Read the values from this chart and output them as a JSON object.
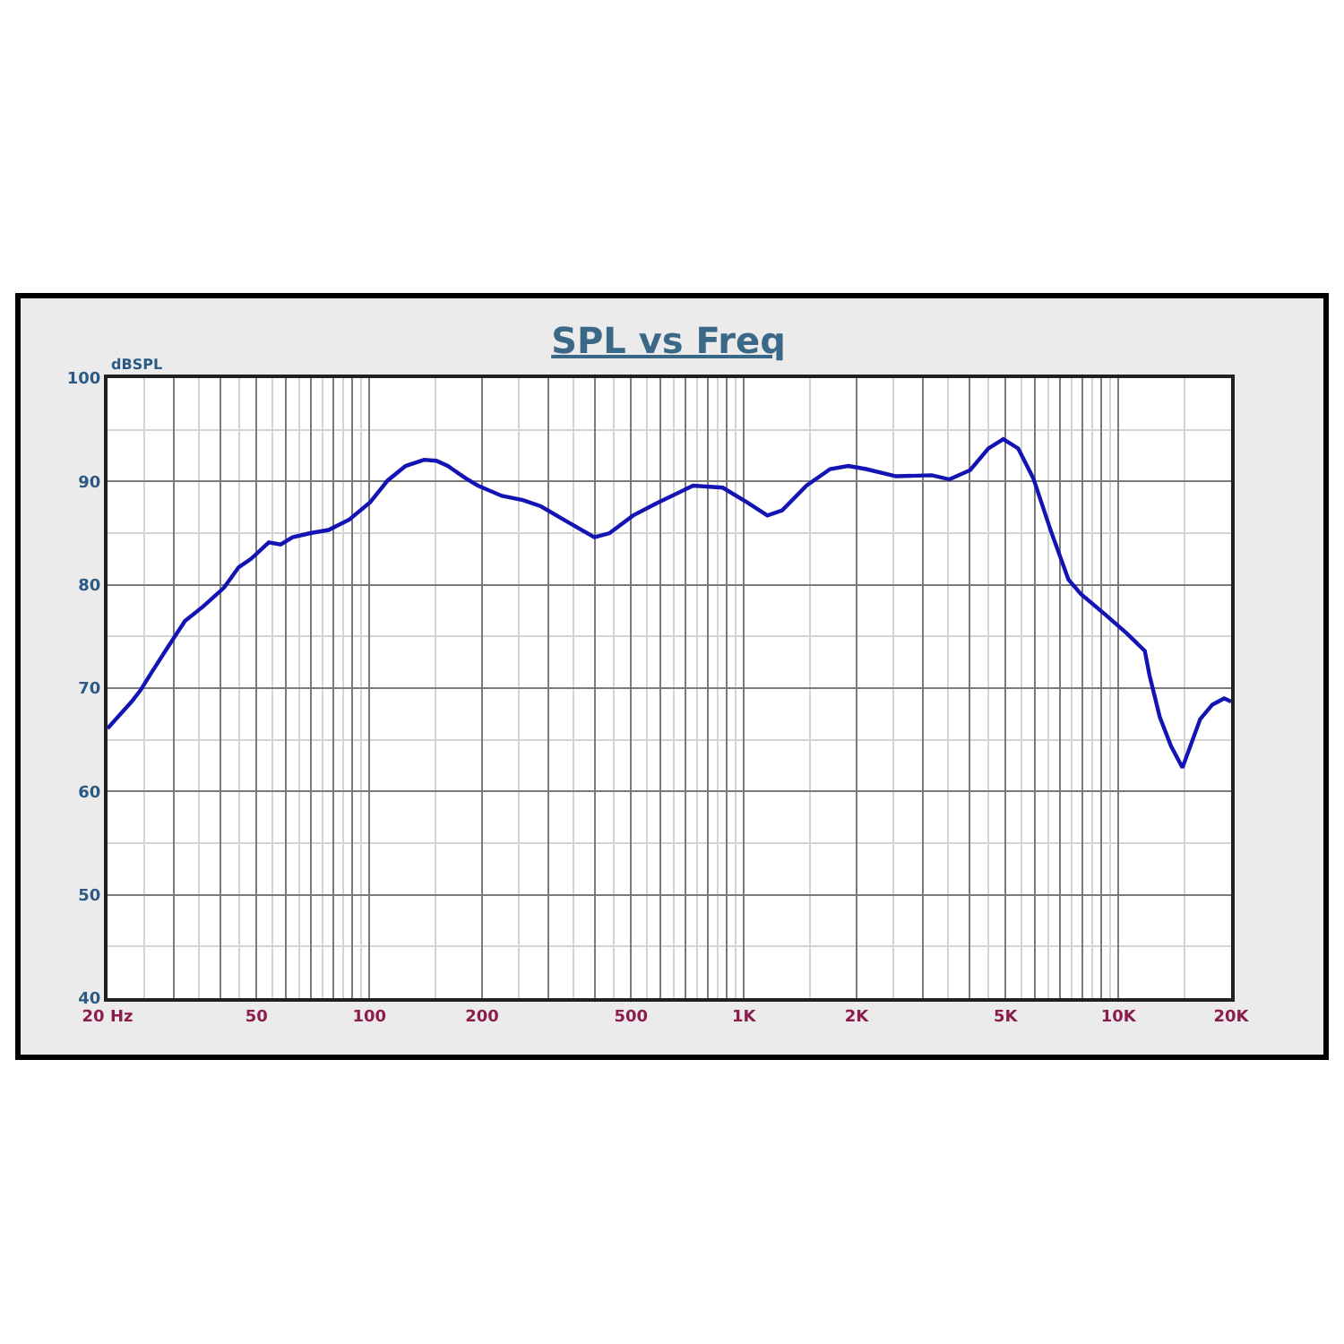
{
  "chart_data": {
    "type": "line",
    "title": "SPL vs Freq",
    "ylabel": "dBSPL",
    "x": [
      20,
      23.2,
      24.5,
      26.3,
      28.9,
      32.2,
      36,
      40.9,
      42.4,
      44.8,
      48.3,
      53.9,
      58,
      62.4,
      69.6,
      77.8,
      88.4,
      100.6,
      112,
      125,
      140,
      151,
      162,
      181,
      195,
      226,
      257,
      287,
      338,
      399,
      438,
      506,
      586,
      732,
      878,
      1018,
      1156,
      1266,
      1470,
      1700,
      1900,
      2120,
      2550,
      3175,
      3540,
      4020,
      4500,
      4930,
      5400,
      5930,
      6620,
      7360,
      7940,
      9240,
      10530,
      11770,
      12100,
      12900,
      13820,
      14830,
      16540,
      17820,
      19160,
      20000
    ],
    "series": [
      {
        "color": "#1414b4",
        "values": [
          66.1,
          68.7,
          69.8,
          71.6,
          73.9,
          76.5,
          77.9,
          79.7,
          80.5,
          81.7,
          82.5,
          84.1,
          83.9,
          84.6,
          85.0,
          85.3,
          86.3,
          88.0,
          90.1,
          91.5,
          92.1,
          92.0,
          91.5,
          90.3,
          89.6,
          88.6,
          88.2,
          87.6,
          86.1,
          84.6,
          85.0,
          86.7,
          87.9,
          89.6,
          89.4,
          88.0,
          86.7,
          87.2,
          89.6,
          91.2,
          91.5,
          91.2,
          90.5,
          90.6,
          90.2,
          91.1,
          93.2,
          94.1,
          93.2,
          90.3,
          85.1,
          80.5,
          79.1,
          77.1,
          75.3,
          73.6,
          71.3,
          67.2,
          64.4,
          62.3,
          67.0,
          68.4,
          69.0,
          68.7
        ]
      }
    ],
    "log": "x",
    "xlim": [
      20,
      20000
    ],
    "ylim": [
      40,
      100
    ],
    "xticks": [
      {
        "value": 20,
        "label": "20 Hz"
      },
      {
        "value": 30,
        "label": null
      },
      {
        "value": 40,
        "label": null
      },
      50,
      {
        "value": 60,
        "label": null
      },
      {
        "value": 70,
        "label": null
      },
      {
        "value": 80,
        "label": null
      },
      {
        "value": 90,
        "label": null
      },
      100,
      200,
      {
        "value": 300,
        "label": null
      },
      {
        "value": 400,
        "label": null
      },
      500,
      {
        "value": 600,
        "label": null
      },
      {
        "value": 700,
        "label": null
      },
      {
        "value": 800,
        "label": null
      },
      {
        "value": 900,
        "label": null
      },
      {
        "value": 1000,
        "label": "1K"
      },
      {
        "value": 2000,
        "label": "2K"
      },
      {
        "value": 3000,
        "label": null
      },
      {
        "value": 4000,
        "label": null
      },
      {
        "value": 5000,
        "label": "5K"
      },
      {
        "value": 6000,
        "label": null
      },
      {
        "value": 7000,
        "label": null
      },
      {
        "value": 8000,
        "label": null
      },
      {
        "value": 9000,
        "label": null
      },
      {
        "value": 10000,
        "label": "10K"
      },
      {
        "value": 20000,
        "label": "20K"
      }
    ],
    "yticks": [
      40,
      50,
      60,
      70,
      80,
      90,
      100
    ],
    "grid": true
  }
}
